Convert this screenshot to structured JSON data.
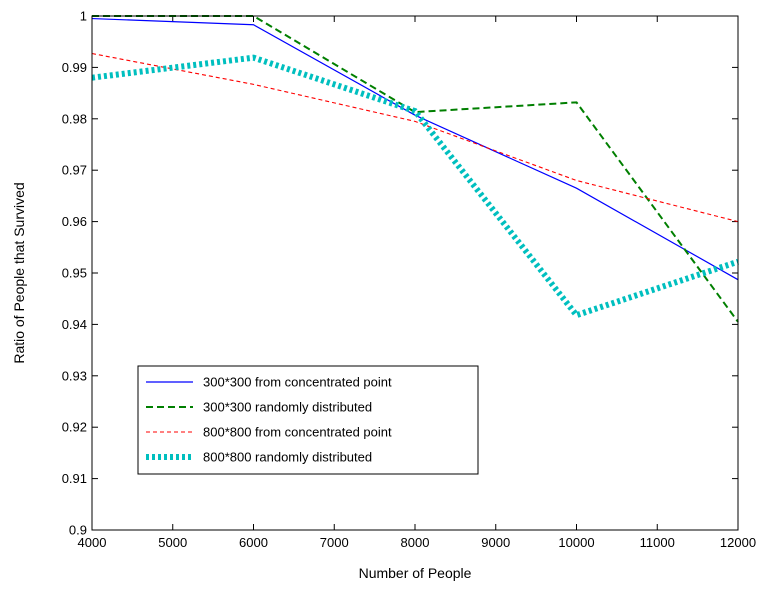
{
  "chart_data": {
    "type": "line",
    "title": "",
    "xlabel": "Number of People",
    "ylabel": "Ratio of People that Survived",
    "xlim": [
      4000,
      12000
    ],
    "ylim": [
      0.9,
      1.0
    ],
    "xticks": [
      4000,
      5000,
      6000,
      7000,
      8000,
      9000,
      10000,
      11000,
      12000
    ],
    "xtick_labels": [
      "4000",
      "5000",
      "6000",
      "7000",
      "8000",
      "9000",
      "10000",
      "11000",
      "12000"
    ],
    "yticks": [
      0.9,
      0.91,
      0.92,
      0.93,
      0.94,
      0.95,
      0.96,
      0.97,
      0.98,
      0.99,
      1.0
    ],
    "ytick_labels": [
      "0.9",
      "0.91",
      "0.92",
      "0.93",
      "0.94",
      "0.95",
      "0.96",
      "0.97",
      "0.98",
      "0.99",
      "1"
    ],
    "grid": false,
    "legend_position": "bottom-left",
    "series": [
      {
        "name": "300*300 from concentrated point",
        "x": [
          4000,
          6000,
          8000,
          10000,
          12000
        ],
        "values": [
          0.9995,
          0.9983,
          0.9807,
          0.9665,
          0.9487
        ],
        "color": "#0000ff",
        "style": "solid"
      },
      {
        "name": "300*300 randomly distributed",
        "x": [
          4000,
          6000,
          8000,
          10000,
          12000
        ],
        "values": [
          1.0,
          1.0,
          0.9813,
          0.9832,
          0.9405
        ],
        "color": "#007f00",
        "style": "dashed"
      },
      {
        "name": "800*800 from concentrated point",
        "x": [
          4000,
          6000,
          8000,
          10000,
          12000
        ],
        "values": [
          0.9927,
          0.9867,
          0.9795,
          0.968,
          0.96
        ],
        "color": "#ff0000",
        "style": "dashed"
      },
      {
        "name": "800*800 randomly distributed",
        "x": [
          4000,
          6000,
          8000,
          10000,
          12000
        ],
        "values": [
          0.988,
          0.9919,
          0.9815,
          0.9418,
          0.9522
        ],
        "color": "#00bfbf",
        "style": "dotted"
      }
    ]
  }
}
